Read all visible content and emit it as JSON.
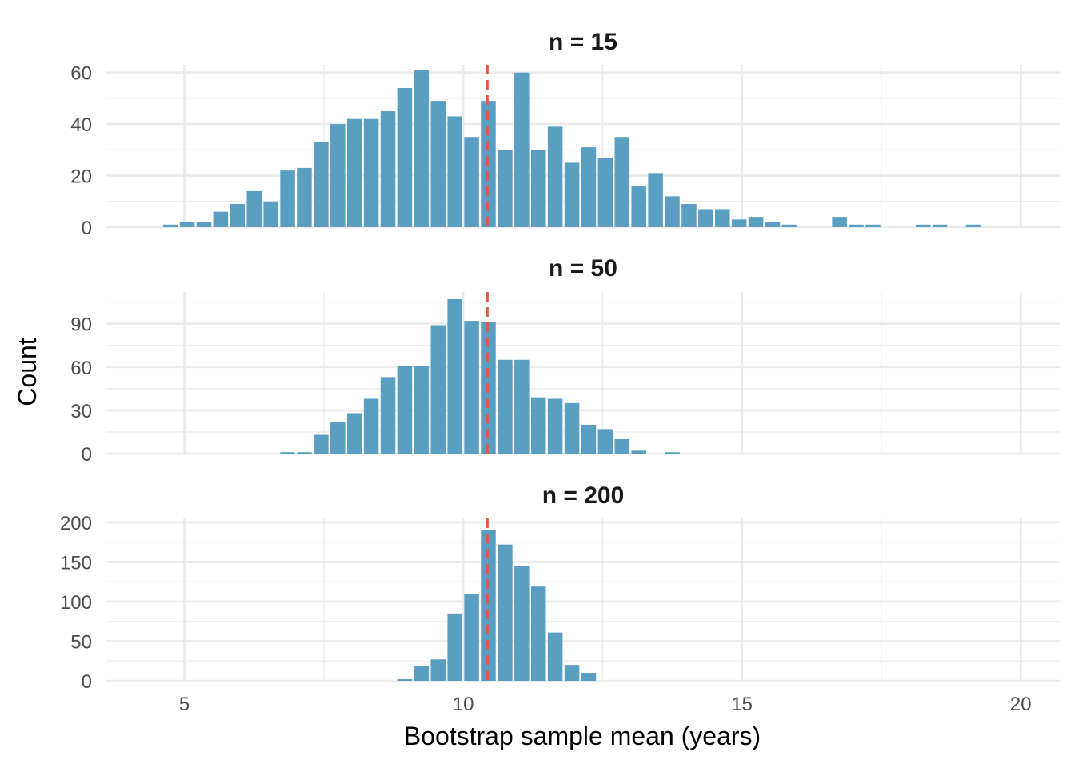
{
  "chart_data": {
    "type": "bar",
    "xlabel": "Bootstrap sample mean (years)",
    "ylabel": "Count",
    "xlim": [
      3.6,
      20.7
    ],
    "x_ticks": [
      5,
      10,
      15,
      20
    ],
    "bin_start": 4.3,
    "bin_width": 0.3,
    "reference_line": {
      "x": 10.43,
      "style": "dashed",
      "color": "#e05a3f"
    },
    "bar_color": "#5a9fc2",
    "panels": [
      {
        "title": "n = 15",
        "ylim": [
          0,
          63
        ],
        "y_ticks": [
          0,
          20,
          40,
          60
        ],
        "counts": [
          0,
          1,
          2,
          2,
          6,
          9,
          14,
          10,
          22,
          23,
          33,
          40,
          42,
          42,
          45,
          54,
          61,
          49,
          43,
          35,
          49,
          30,
          60,
          30,
          39,
          25,
          31,
          27,
          35,
          16,
          21,
          12,
          9,
          7,
          7,
          3,
          4,
          2,
          1,
          0,
          0,
          4,
          1,
          1,
          0,
          0,
          1,
          1,
          0,
          1
        ]
      },
      {
        "title": "n = 50",
        "ylim": [
          0,
          112
        ],
        "y_ticks": [
          0,
          30,
          60,
          90
        ],
        "counts": [
          0,
          0,
          0,
          0,
          0,
          0,
          0,
          0,
          1,
          1,
          13,
          22,
          28,
          38,
          53,
          61,
          61,
          89,
          107,
          92,
          91,
          65,
          65,
          39,
          38,
          35,
          20,
          17,
          10,
          2,
          0,
          1
        ]
      },
      {
        "title": "n = 200",
        "ylim": [
          0,
          205
        ],
        "y_ticks": [
          0,
          50,
          100,
          150,
          200
        ],
        "counts": [
          0,
          0,
          0,
          0,
          0,
          0,
          0,
          0,
          0,
          0,
          0,
          0,
          0,
          0,
          0,
          2,
          19,
          27,
          85,
          110,
          190,
          172,
          145,
          119,
          61,
          20,
          10,
          0
        ]
      }
    ]
  }
}
